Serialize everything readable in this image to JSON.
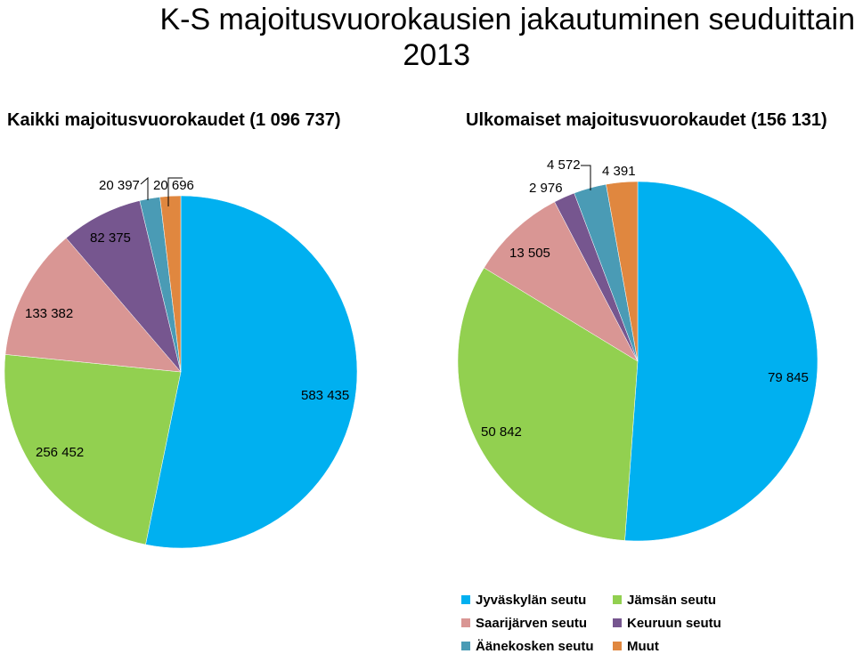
{
  "title_line1": "K-S majoitusvuorokausien jakautuminen seuduittain",
  "title_line2": "2013",
  "colors": {
    "Jyväskylän seutu": "#00b0f0",
    "Jämsän seutu": "#92d050",
    "Saarijärven seutu": "#d99694",
    "Keuruun seutu": "#76568f",
    "Äänekosken seutu": "#4a9bb5",
    "Muut": "#e0873f"
  },
  "legend": [
    {
      "name": "Jyväskylän seutu",
      "color": "#00b0f0"
    },
    {
      "name": "Jämsän seutu",
      "color": "#92d050"
    },
    {
      "name": "Saarijärven seutu",
      "color": "#d99694"
    },
    {
      "name": "Keuruun seutu",
      "color": "#76568f"
    },
    {
      "name": "Äänekosken seutu",
      "color": "#4a9bb5"
    },
    {
      "name": "Muut",
      "color": "#e0873f"
    }
  ],
  "chart_data": [
    {
      "type": "pie",
      "title": "Kaikki majoitusvuorokaudet (1 096 737)",
      "categories": [
        "Jyväskylän seutu",
        "Jämsän seutu",
        "Saarijärven seutu",
        "Keuruun seutu",
        "Äänekosken seutu",
        "Muut"
      ],
      "values": [
        583435,
        256452,
        133382,
        82375,
        20397,
        20696
      ],
      "labels": [
        "583 435",
        "256 452",
        "133 382",
        "82 375",
        "20 397",
        "20 696"
      ],
      "legend": "bottom-right"
    },
    {
      "type": "pie",
      "title": "Ulkomaiset majoitusvuorokaudet (156 131)",
      "categories": [
        "Jyväskylän seutu",
        "Jämsän seutu",
        "Saarijärven seutu",
        "Keuruun seutu",
        "Äänekosken seutu",
        "Muut"
      ],
      "values": [
        79845,
        50842,
        13505,
        2976,
        4572,
        4391
      ],
      "labels": [
        "79 845",
        "50 842",
        "13 505",
        "2 976",
        "4 572",
        "4 391"
      ],
      "legend": "bottom-right"
    }
  ]
}
